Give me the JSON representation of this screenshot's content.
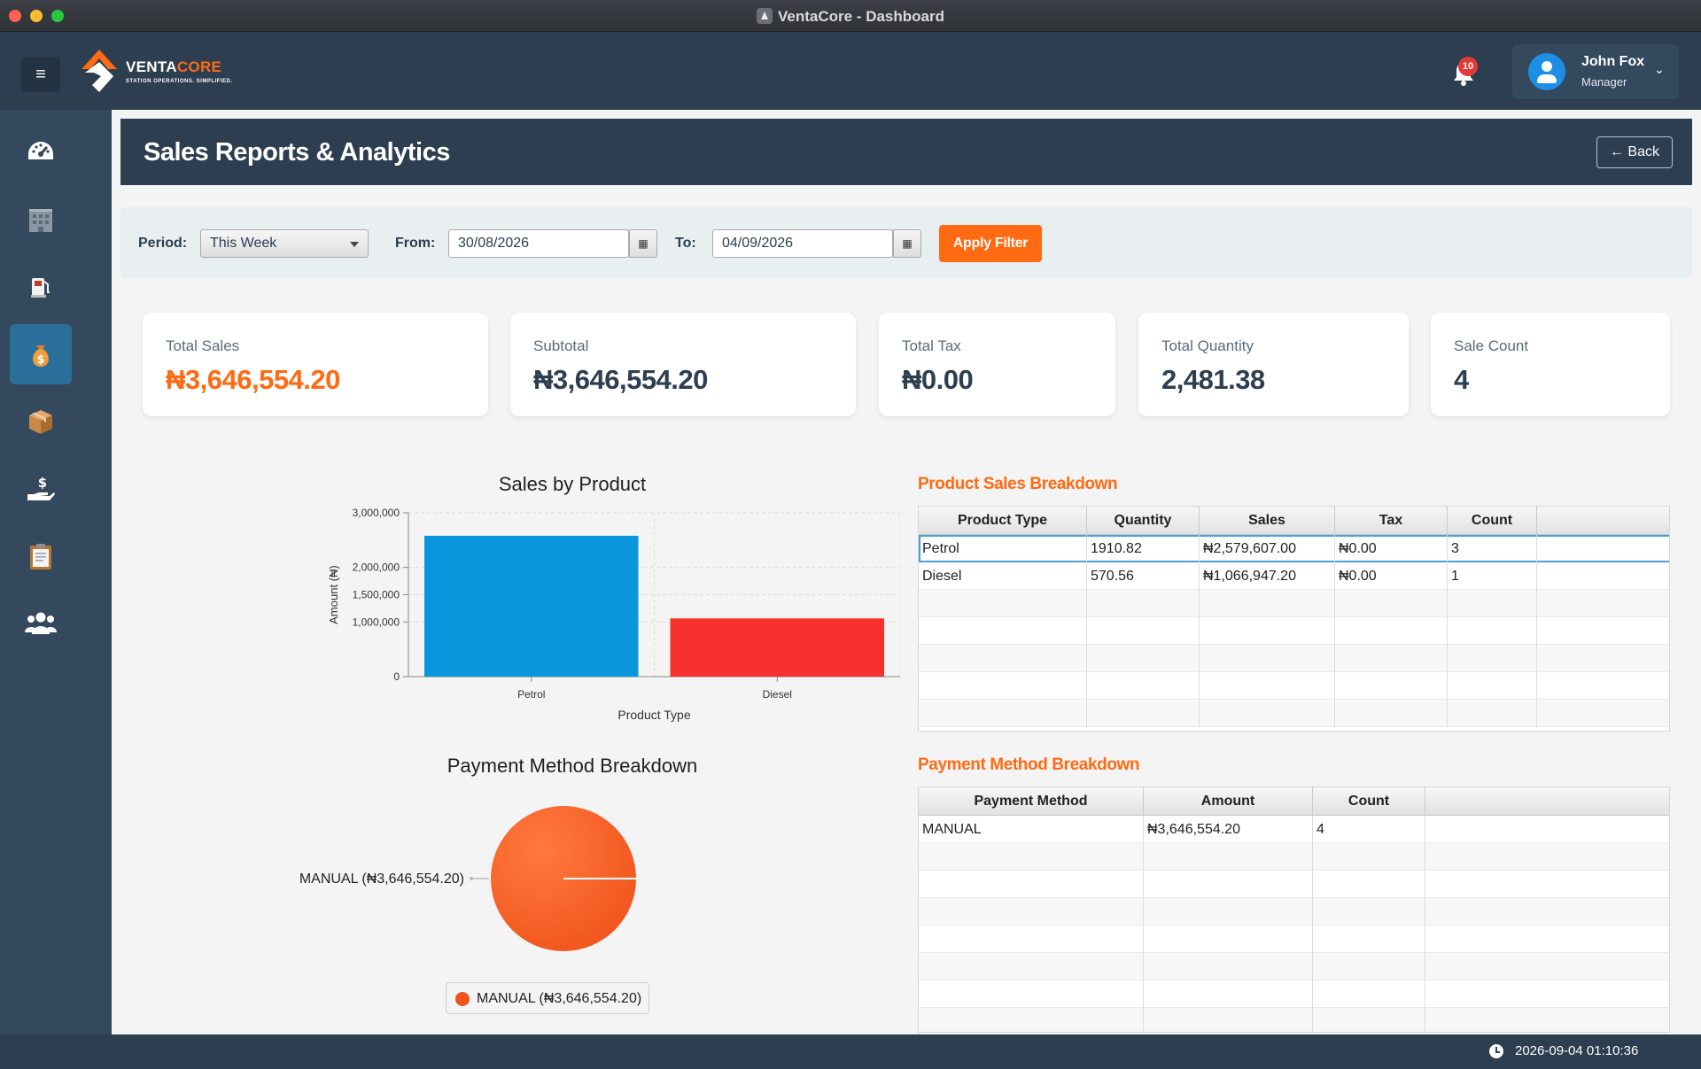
{
  "window": {
    "title": "VentaCore - Dashboard"
  },
  "header": {
    "menu_icon": "≡",
    "logo": {
      "brand_part1": "VENTA",
      "brand_part2": "CORE",
      "tagline": "STATION OPERATIONS. SIMPLIFIED."
    },
    "notifications": {
      "count": "10"
    },
    "user": {
      "name": "John Fox",
      "role": "Manager"
    }
  },
  "sidebar": {
    "items": [
      {
        "icon": "dashboard-gauge-icon",
        "active": false
      },
      {
        "icon": "building-icon",
        "active": false
      },
      {
        "icon": "fuel-pump-icon",
        "active": false
      },
      {
        "icon": "money-bag-icon",
        "active": true
      },
      {
        "icon": "package-icon",
        "active": false
      },
      {
        "icon": "hand-dollar-icon",
        "active": false
      },
      {
        "icon": "clipboard-icon",
        "active": false
      },
      {
        "icon": "users-icon",
        "active": false
      }
    ]
  },
  "page": {
    "title": "Sales Reports & Analytics",
    "back_label": "← Back"
  },
  "filter": {
    "period_label": "Period:",
    "period_value": "This Week",
    "from_label": "From:",
    "from_value": "30/08/2026",
    "to_label": "To:",
    "to_value": "04/09/2026",
    "calendar_icon": "▦",
    "apply_label": "Apply Filter"
  },
  "cards": [
    {
      "label": "Total Sales",
      "value": "₦3,646,554.20"
    },
    {
      "label": "Subtotal",
      "value": "₦3,646,554.20"
    },
    {
      "label": "Total Tax",
      "value": "₦0.00"
    },
    {
      "label": "Total Quantity",
      "value": "2,481.38"
    },
    {
      "label": "Sale Count",
      "value": "4"
    }
  ],
  "chart_data": [
    {
      "type": "bar",
      "title": "Sales by Product",
      "xlabel": "Product Type",
      "ylabel": "Amount (₦)",
      "categories": [
        "Petrol",
        "Diesel"
      ],
      "values": [
        2579607.0,
        1066947.2
      ],
      "colors": [
        "#0a96dc",
        "#f5302d"
      ],
      "ylim": [
        0,
        3000000
      ],
      "yticks": [
        0,
        1000000,
        1500000,
        2000000,
        3000000
      ],
      "ytick_labels": [
        "0",
        "1,000,000",
        "1,500,000",
        "2,000,000",
        "3,000,000"
      ],
      "grid": true
    },
    {
      "type": "pie",
      "title": "Payment Method Breakdown",
      "labels": [
        "MANUAL (₦3,646,554.20)"
      ],
      "values": [
        3646554.2
      ],
      "colors": [
        "#f0531c"
      ],
      "legend": [
        "MANUAL (₦3,646,554.20)"
      ],
      "legend_position": "bottom"
    }
  ],
  "product_table": {
    "title": "Product Sales Breakdown",
    "columns": [
      "Product Type",
      "Quantity",
      "Sales",
      "Tax",
      "Count"
    ],
    "rows": [
      [
        "Petrol",
        "1910.82",
        "₦2,579,607.00",
        "₦0.00",
        "3"
      ],
      [
        "Diesel",
        "570.56",
        "₦1,066,947.20",
        "₦0.00",
        "1"
      ]
    ]
  },
  "payment_table": {
    "title": "Payment Method Breakdown",
    "columns": [
      "Payment Method",
      "Amount",
      "Count"
    ],
    "rows": [
      [
        "MANUAL",
        "₦3,646,554.20",
        "4"
      ]
    ]
  },
  "status": {
    "datetime": "2026-09-04 01:10:36"
  },
  "colors": {
    "accent": "#ff6a13",
    "navy": "#2c3e50",
    "selection": "#4a9edb"
  }
}
